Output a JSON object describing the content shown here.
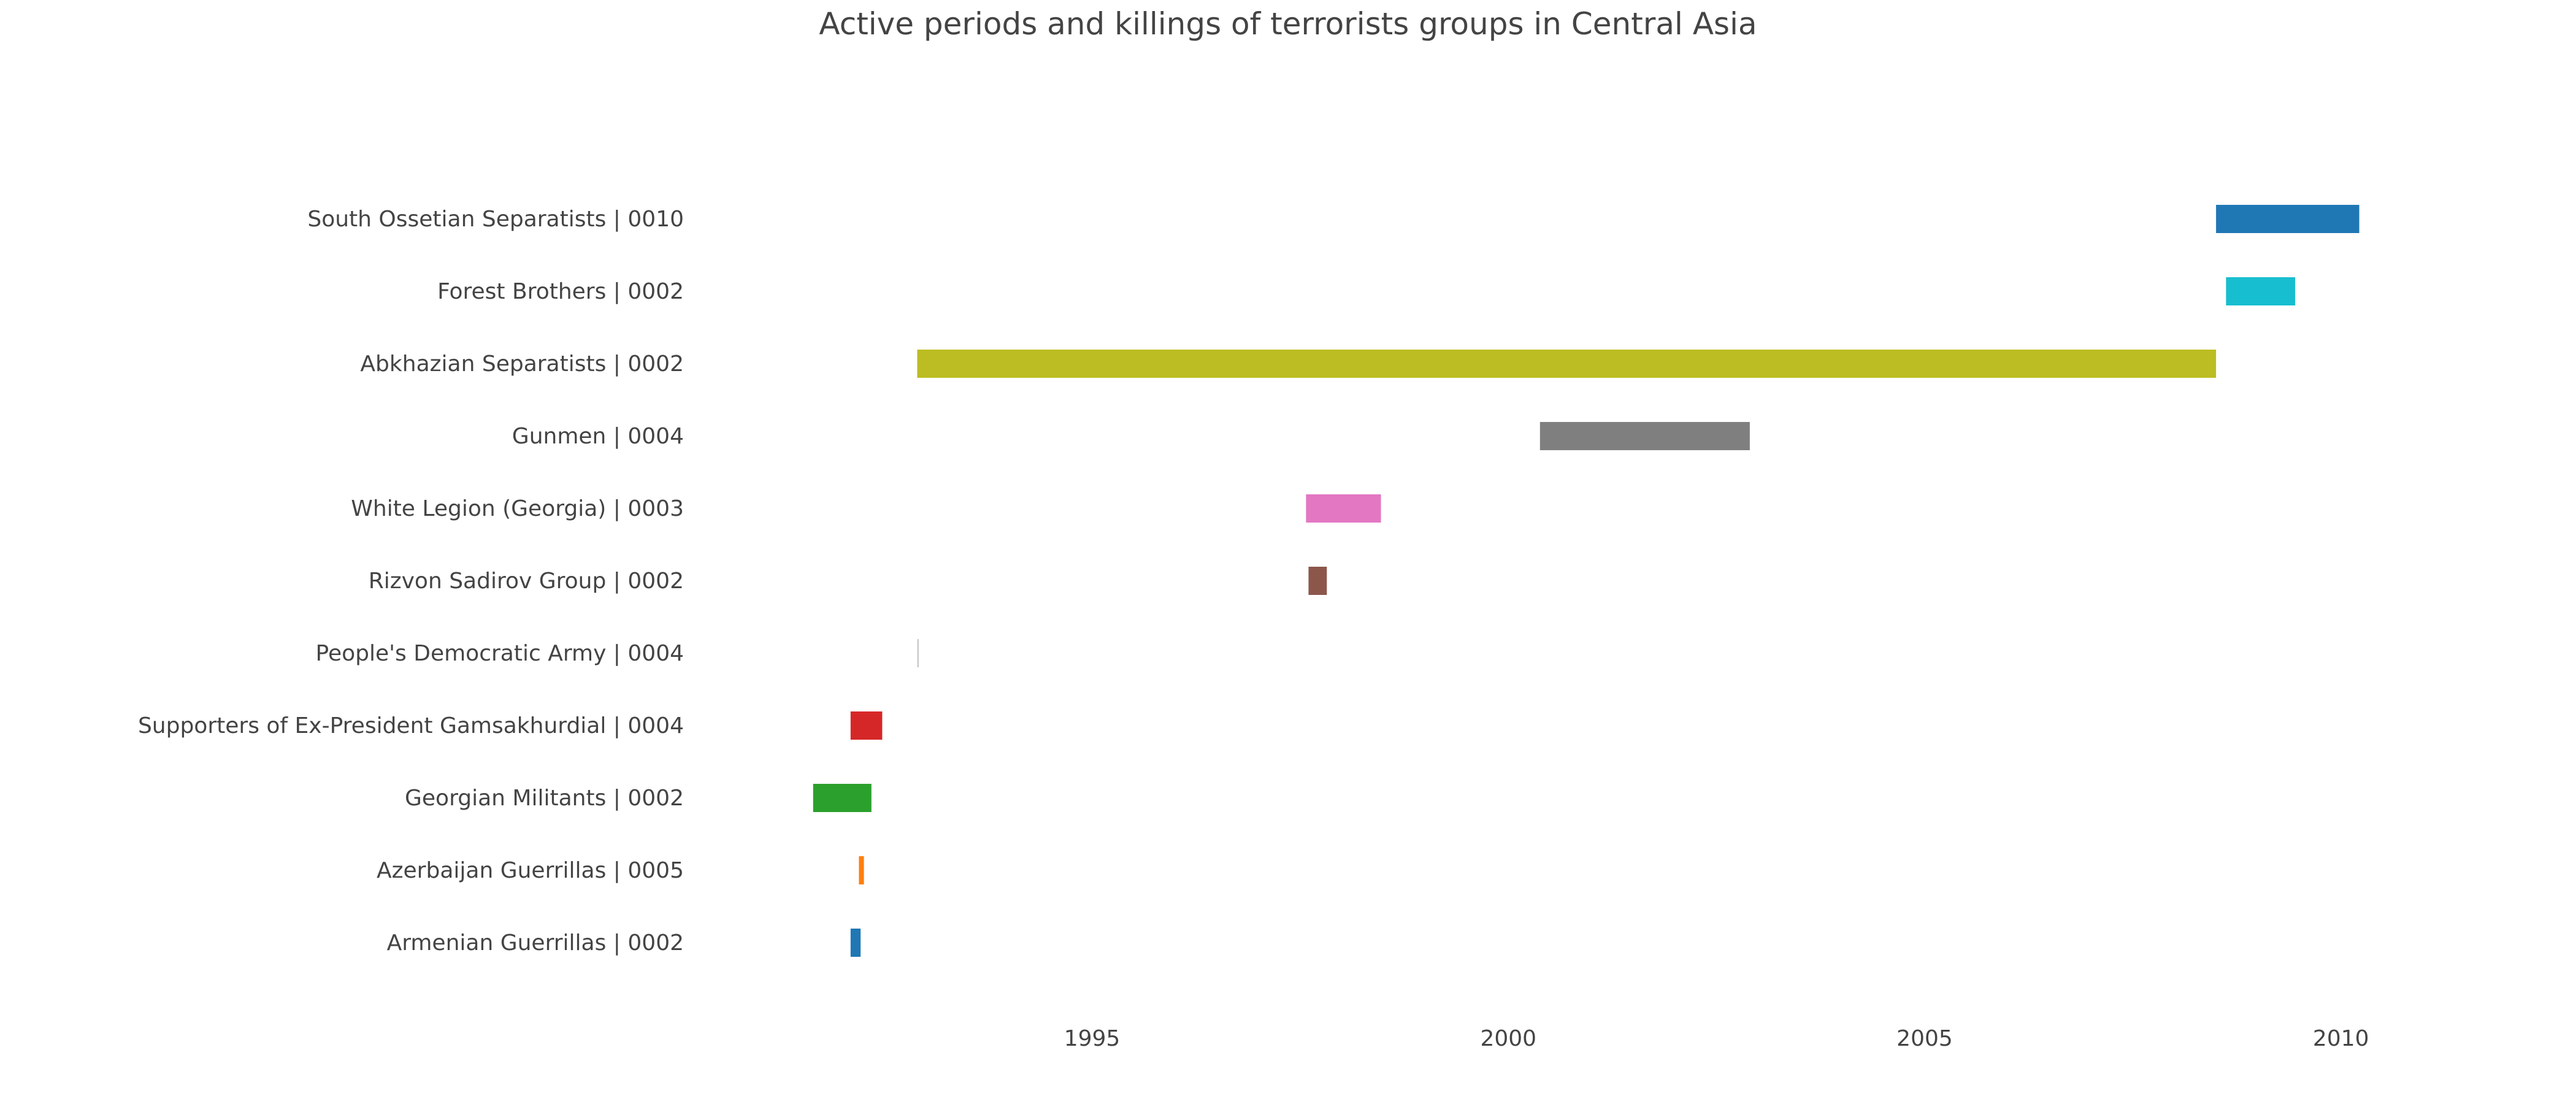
{
  "chart_data": {
    "type": "bar",
    "orientation": "horizontal-timeline",
    "title": "Active periods and killings of terrorists groups in Central Asia",
    "xlabel": "",
    "ylabel": "",
    "grid": false,
    "legend": "none",
    "xlim": [
      1990.65,
      2011.35
    ],
    "x_ticks": [
      {
        "value": 1995,
        "label": "1995"
      },
      {
        "value": 2000,
        "label": "2000"
      },
      {
        "value": 2005,
        "label": "2005"
      },
      {
        "value": 2010,
        "label": "2010"
      }
    ],
    "series": [
      {
        "category": "Armenian Guerrillas | 0002",
        "start": 1992.1,
        "end": 1992.22,
        "color": "#1f77b4"
      },
      {
        "category": "Azerbaijan Guerrillas | 0005",
        "start": 1992.2,
        "end": 1992.26,
        "color": "#ff7f0e"
      },
      {
        "category": "Georgian Militants | 0002",
        "start": 1991.65,
        "end": 1992.35,
        "color": "#2ca02c"
      },
      {
        "category": "Supporters of Ex-President Gamsakhurdial | 0004",
        "start": 1992.1,
        "end": 1992.48,
        "color": "#d62728"
      },
      {
        "category": "People's Democratic Army | 0004",
        "start": 1992.9,
        "end": 1992.92,
        "color": "#cccccc"
      },
      {
        "category": "Rizvon Sadirov Group | 0002",
        "start": 1997.6,
        "end": 1997.82,
        "color": "#8c564b"
      },
      {
        "category": "White Legion (Georgia) | 0003",
        "start": 1997.57,
        "end": 1998.47,
        "color": "#e377c2"
      },
      {
        "category": "Gunmen | 0004",
        "start": 2000.38,
        "end": 2002.9,
        "color": "#7f7f7f"
      },
      {
        "category": "Abkhazian Separatists | 0002",
        "start": 1992.9,
        "end": 2008.5,
        "color": "#bcbd22"
      },
      {
        "category": "Forest Brothers | 0002",
        "start": 2008.62,
        "end": 2009.45,
        "color": "#17becf"
      },
      {
        "category": "South Ossetian Separatists | 0010",
        "start": 2008.5,
        "end": 2010.22,
        "color": "#1f77b4"
      }
    ]
  }
}
